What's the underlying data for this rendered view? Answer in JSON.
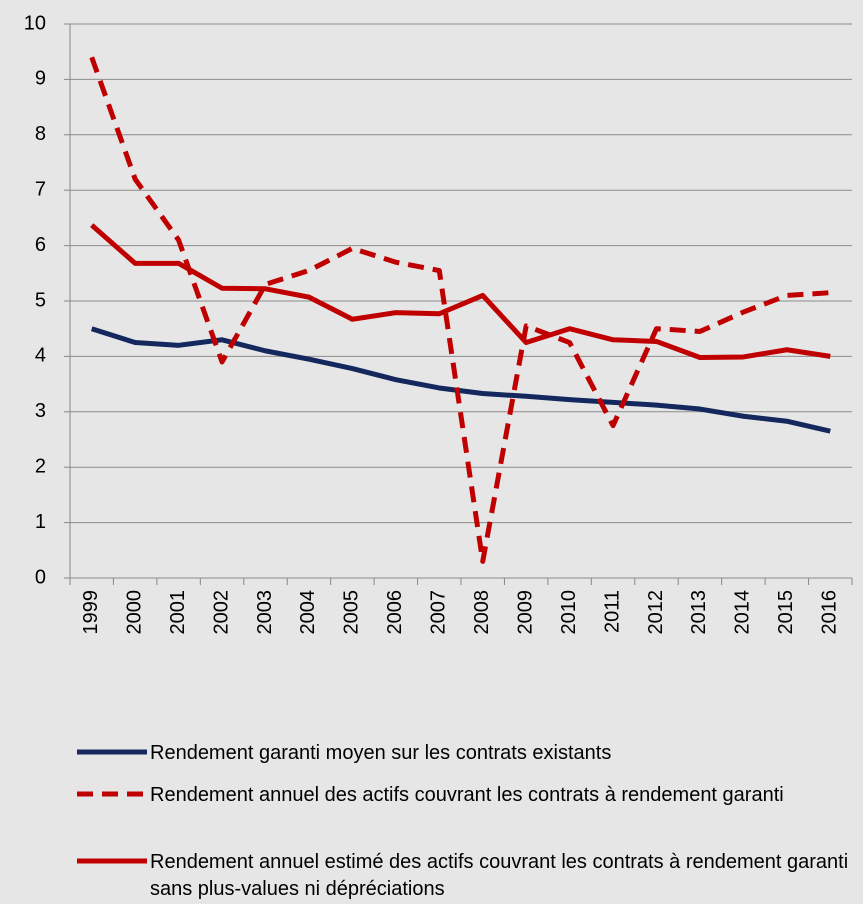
{
  "chart_data": {
    "type": "line",
    "categories": [
      "1999",
      "2000",
      "2001",
      "2002",
      "2003",
      "2004",
      "2005",
      "2006",
      "2007",
      "2008",
      "2009",
      "2010",
      "2011",
      "2012",
      "2013",
      "2014",
      "2015",
      "2016"
    ],
    "series": [
      {
        "name": "Rendement garanti moyen sur les contrats existants",
        "color": "#14285e",
        "dash": false,
        "values": [
          4.5,
          4.25,
          4.2,
          4.3,
          4.1,
          3.95,
          3.78,
          3.58,
          3.43,
          3.33,
          3.28,
          3.22,
          3.17,
          3.12,
          3.05,
          2.92,
          2.83,
          2.65
        ]
      },
      {
        "name": "Rendement annuel des actifs couvrant les contrats à rendement garanti",
        "color": "#c00000",
        "dash": true,
        "values": [
          9.4,
          7.2,
          6.1,
          3.9,
          5.3,
          5.55,
          5.95,
          5.7,
          5.55,
          0.3,
          4.55,
          4.25,
          2.75,
          4.5,
          4.45,
          4.8,
          5.1,
          5.15
        ]
      },
      {
        "name": "Rendement annuel estimé des actifs couvrant les contrats à rendement garanti sans plus-values ni dépréciations",
        "color": "#c00000",
        "dash": false,
        "values": [
          6.37,
          5.68,
          5.68,
          5.23,
          5.22,
          5.07,
          4.67,
          4.79,
          4.77,
          5.1,
          4.25,
          4.5,
          4.3,
          4.27,
          3.98,
          3.99,
          4.12,
          4.0
        ]
      }
    ],
    "ylim": [
      0,
      10
    ],
    "yticks": [
      0,
      1,
      2,
      3,
      4,
      5,
      6,
      7,
      8,
      9,
      10
    ],
    "grid": true,
    "legend": "bottom"
  }
}
